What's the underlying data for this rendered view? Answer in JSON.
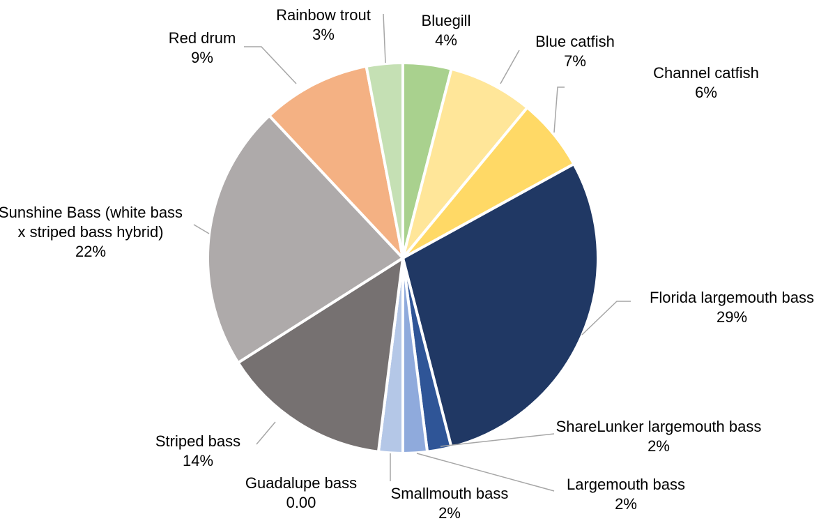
{
  "chart_data": {
    "type": "pie",
    "categories": [
      "Bluegill",
      "Blue catfish",
      "Channel catfish",
      "Florida largemouth bass",
      "ShareLunker largemouth bass",
      "Largemouth bass",
      "Smallmouth bass",
      "Guadalupe bass",
      "Striped bass",
      "Sunshine Bass (white bass x striped bass hybrid)",
      "Red drum",
      "Rainbow trout"
    ],
    "values": [
      4,
      7,
      6,
      29,
      2,
      2,
      2,
      0,
      14,
      22,
      9,
      3
    ],
    "value_labels": [
      "4%",
      "7%",
      "6%",
      "29%",
      "2%",
      "2%",
      "2%",
      "0.00",
      "14%",
      "22%",
      "9%",
      "3%"
    ],
    "colors": [
      "#a9d18e",
      "#ffe699",
      "#ffd966",
      "#203864",
      "#2f5597",
      "#8faadc",
      "#b4c7e7",
      "#dae3f3",
      "#767171",
      "#aeaaaa",
      "#f4b183",
      "#c5e0b4"
    ]
  }
}
